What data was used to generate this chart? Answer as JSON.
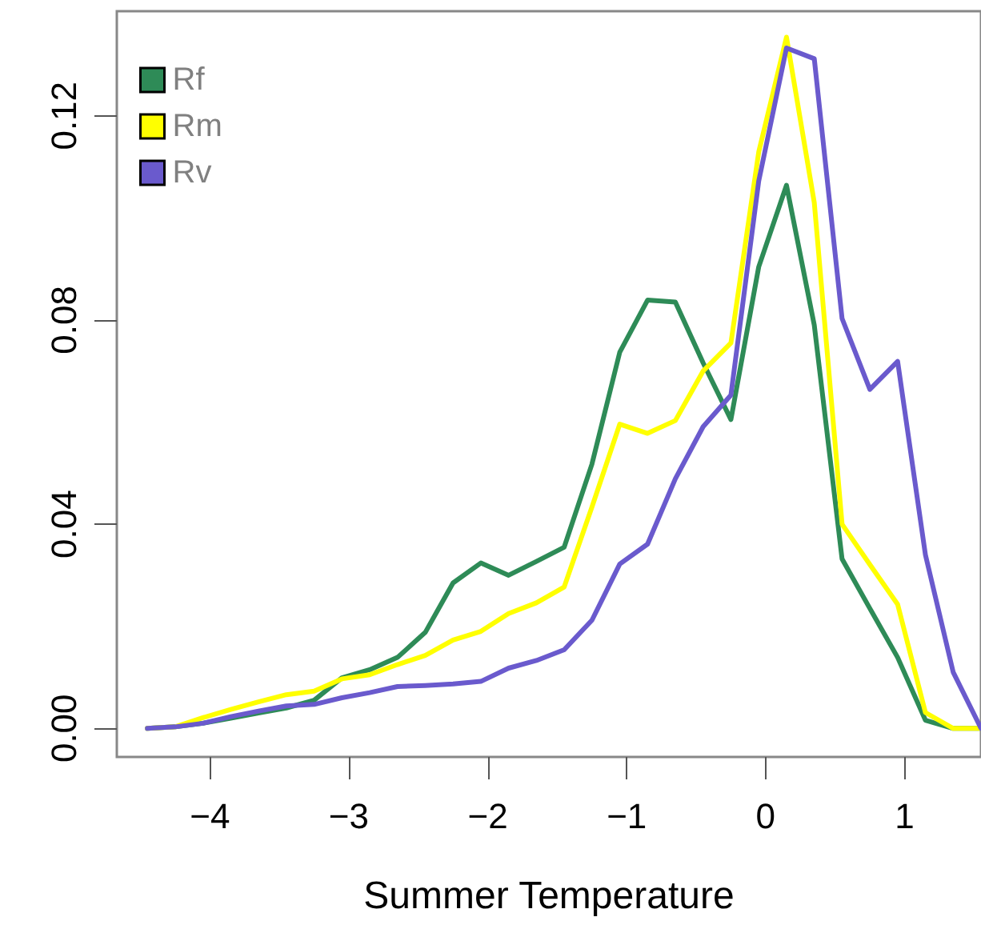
{
  "chart_data": {
    "type": "line",
    "xlabel": "Summer Temperature",
    "x": [
      -4.45,
      -4.25,
      -4.05,
      -3.85,
      -3.65,
      -3.45,
      -3.25,
      -3.05,
      -2.85,
      -2.65,
      -2.45,
      -2.25,
      -2.05,
      -1.85,
      -1.65,
      -1.45,
      -1.25,
      -1.05,
      -0.85,
      -0.65,
      -0.45,
      -0.25,
      -0.05,
      0.15,
      0.35,
      0.55,
      0.75,
      0.95,
      1.15,
      1.35,
      1.55
    ],
    "series": [
      {
        "name": "Rf",
        "color": "#2e8b57",
        "values": [
          0,
          0.0003,
          0.001,
          0.002,
          0.003,
          0.004,
          0.0055,
          0.0099,
          0.0115,
          0.0139,
          0.0188,
          0.0285,
          0.0324,
          0.03,
          0.0327,
          0.0355,
          0.0518,
          0.0737,
          0.0839,
          0.0835,
          0.0716,
          0.0605,
          0.0904,
          0.1064,
          0.079,
          0.0332,
          0.0235,
          0.0139,
          0.0016,
          0,
          0
        ]
      },
      {
        "name": "Rm",
        "color": "#ffff00",
        "values": [
          0,
          0.0003,
          0.0021,
          0.0037,
          0.0052,
          0.0066,
          0.0073,
          0.0097,
          0.0105,
          0.0125,
          0.0143,
          0.0173,
          0.019,
          0.0225,
          0.0246,
          0.0277,
          0.0434,
          0.0596,
          0.0578,
          0.0603,
          0.07,
          0.0755,
          0.1129,
          0.1354,
          0.103,
          0.04,
          0.0321,
          0.0243,
          0.0031,
          0,
          0
        ]
      },
      {
        "name": "Rv",
        "color": "#6a5acd",
        "values": [
          0,
          0.0003,
          0.001,
          0.0023,
          0.0034,
          0.0044,
          0.0047,
          0.006,
          0.007,
          0.0082,
          0.0084,
          0.0087,
          0.0092,
          0.0118,
          0.0133,
          0.0154,
          0.0212,
          0.0322,
          0.0361,
          0.0489,
          0.0591,
          0.0653,
          0.1072,
          0.1333,
          0.1312,
          0.0803,
          0.0664,
          0.0719,
          0.034,
          0.011,
          0
        ]
      }
    ],
    "xlim": [
      -4.67,
      1.55
    ],
    "xticks": [
      -4,
      -3,
      -2,
      -1,
      0,
      1
    ],
    "ylim": [
      -0.0056,
      0.1405
    ],
    "yticks": [
      {
        "value": 0,
        "label": "0.00"
      },
      {
        "value": 0.04,
        "label": "0.04"
      },
      {
        "value": 0.08,
        "label": "0.08"
      },
      {
        "value": 0.12,
        "label": "0.12"
      }
    ],
    "legend": "top left",
    "grid": false,
    "marker": "none",
    "line_style": "solid"
  }
}
